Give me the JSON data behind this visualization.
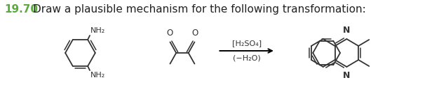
{
  "title_number": "19.70",
  "title_text": "Draw a plausible mechanism for the following transformation:",
  "title_color": "#5aaa3c",
  "title_number_fontsize": 11,
  "title_text_fontsize": 11,
  "background_color": "#ffffff",
  "arrow_color": "#000000",
  "structure_color": "#333333",
  "reagent_line1": "[H₂SO₄]",
  "reagent_line2": "(−H₂O)",
  "reagent_fontsize": 8,
  "n_label": "N",
  "nh2_label": "NH₂",
  "o_label": "O"
}
